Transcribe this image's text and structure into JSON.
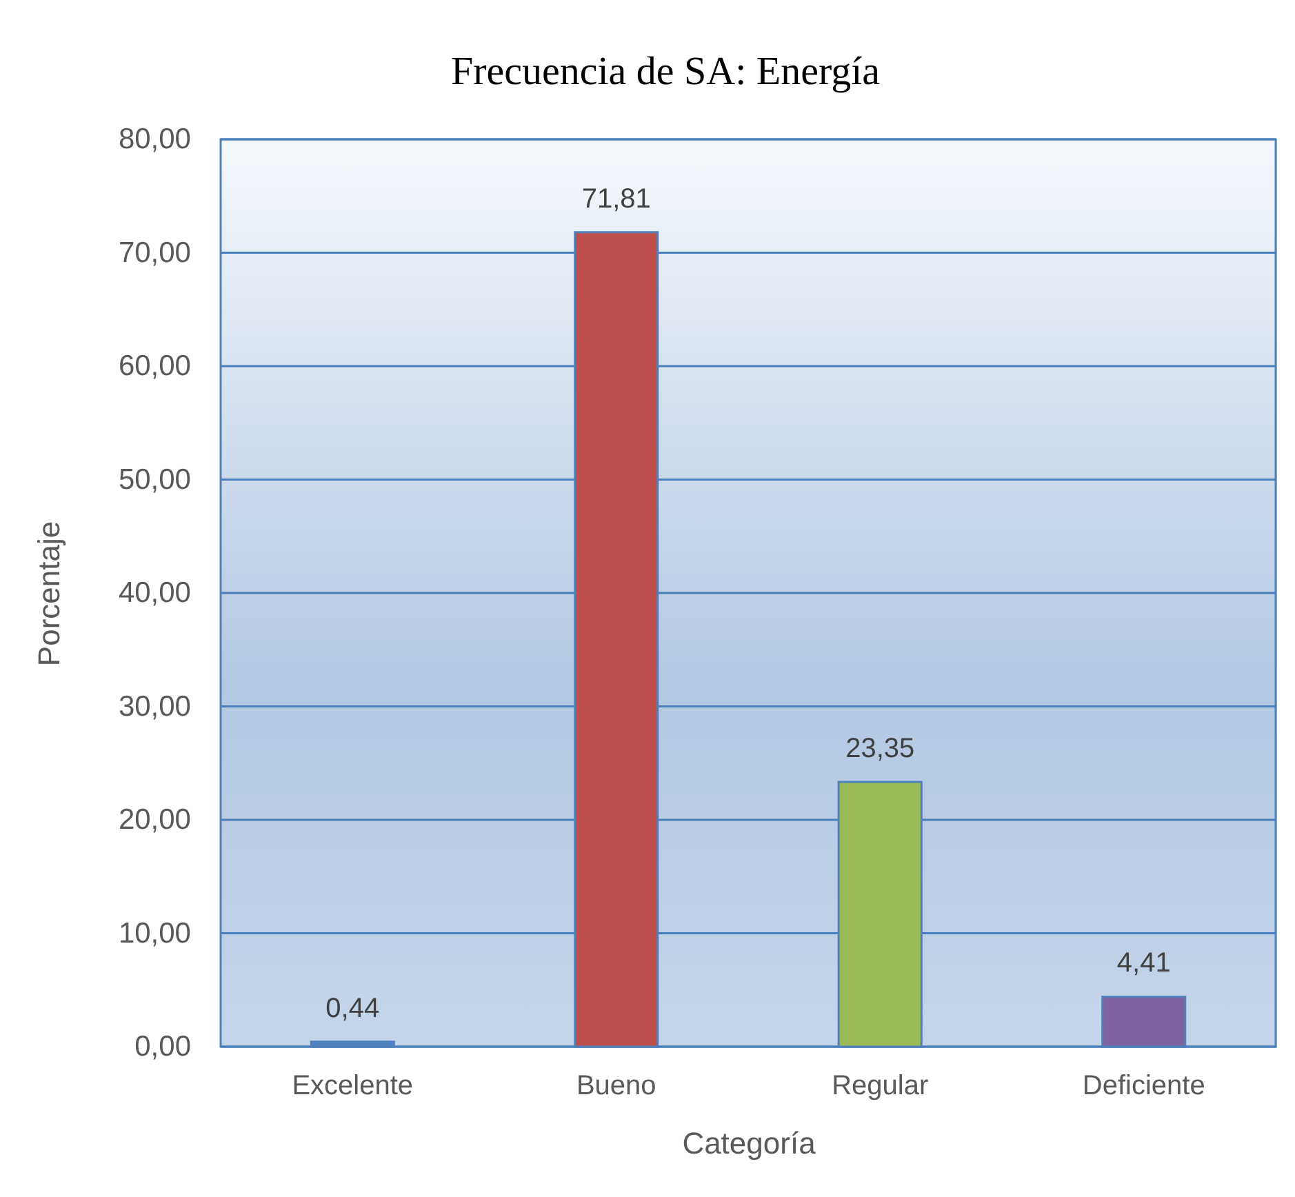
{
  "chart_data": {
    "type": "bar",
    "title": "Frecuencia  de SA: Energía",
    "xlabel": "Categoría",
    "ylabel": "Porcentaje",
    "categories": [
      "Excelente",
      "Bueno",
      "Regular",
      "Deficiente"
    ],
    "values": [
      0.44,
      71.81,
      23.35,
      4.41
    ],
    "colors": [
      "#4f81bd",
      "#c0504d",
      "#9bbb59",
      "#8064a2"
    ],
    "value_labels": [
      "0,44",
      "71,81",
      "23,35",
      "4,41"
    ],
    "ylim": [
      0,
      80
    ],
    "yticks": [
      {
        "value": 0,
        "label": "0,00"
      },
      {
        "value": 10,
        "label": "10,00"
      },
      {
        "value": 20,
        "label": "20,00"
      },
      {
        "value": 30,
        "label": "30,00"
      },
      {
        "value": 40,
        "label": "40,00"
      },
      {
        "value": 50,
        "label": "50,00"
      },
      {
        "value": 60,
        "label": "60,00"
      },
      {
        "value": 70,
        "label": "70,00"
      },
      {
        "value": 80,
        "label": "80,00"
      }
    ],
    "grid": "y",
    "legend": false
  }
}
